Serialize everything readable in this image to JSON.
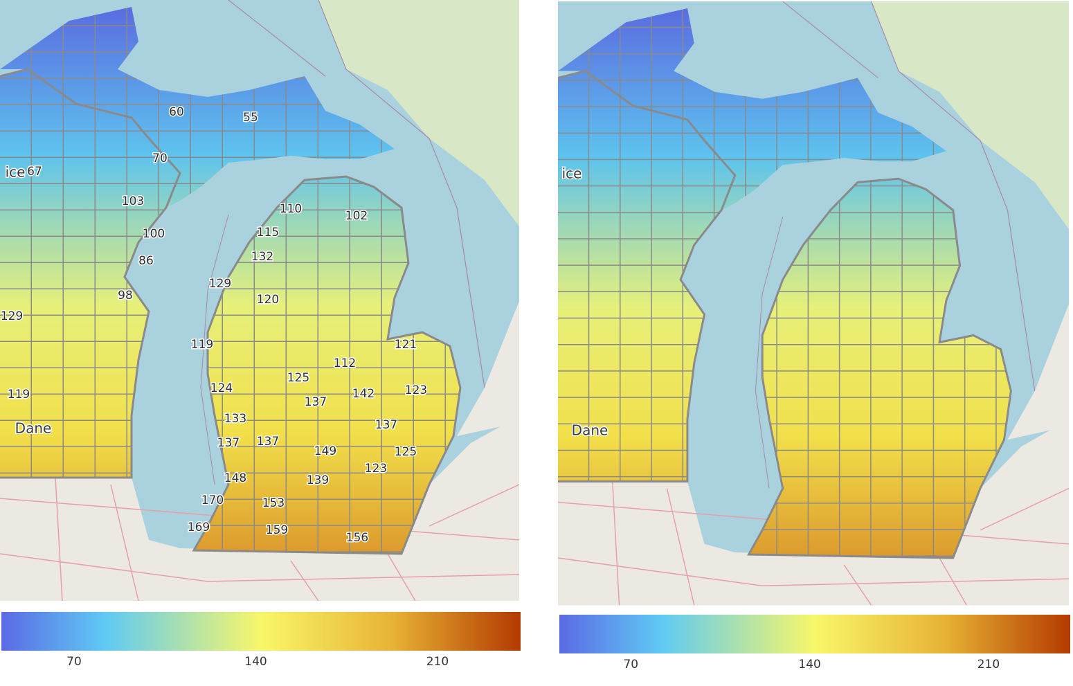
{
  "left_map": {
    "county_labels": [
      60,
      55,
      70,
      67,
      103,
      100,
      86,
      110,
      102,
      115,
      132,
      129,
      98,
      120,
      129,
      119,
      121,
      112,
      125,
      124,
      142,
      123,
      137,
      119,
      133,
      137,
      137,
      137,
      125,
      149,
      123,
      148,
      139,
      170,
      153,
      169,
      159,
      156
    ],
    "place_labels": [
      "ice",
      "Dane"
    ],
    "colorbar": {
      "range": [
        42,
        242
      ],
      "ticks": [
        70,
        140,
        210
      ]
    }
  },
  "right_map": {
    "place_labels": [
      "ice",
      "Dane"
    ],
    "colorbar": {
      "range": [
        42,
        242
      ],
      "ticks": [
        70,
        140,
        210
      ]
    }
  }
}
